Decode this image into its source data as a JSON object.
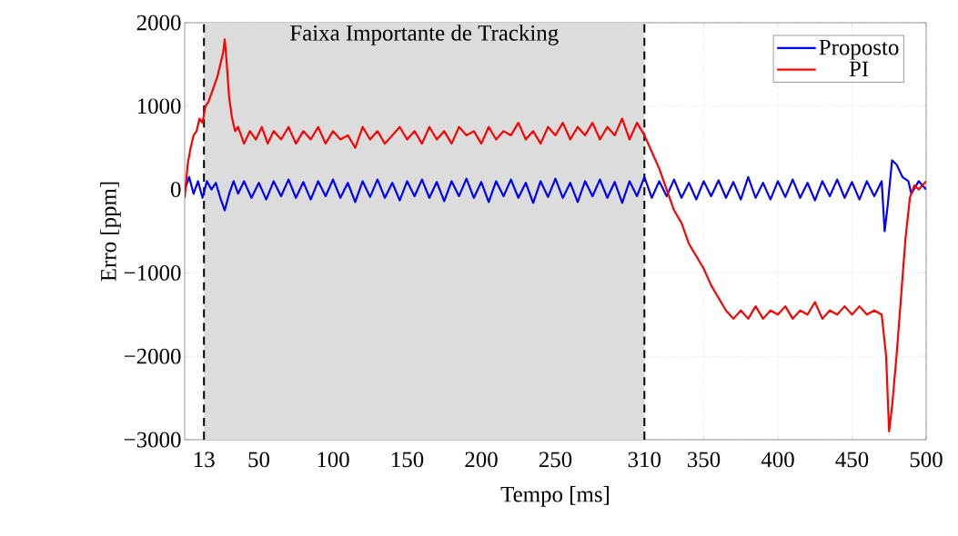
{
  "chart_data": {
    "type": "line",
    "xlabel": "Tempo [ms]",
    "ylabel": "Erro [ppm]",
    "xlim": [
      0,
      500
    ],
    "ylim": [
      -3000,
      2000
    ],
    "xticks": [
      13,
      50,
      100,
      150,
      200,
      250,
      310,
      350,
      400,
      450,
      500
    ],
    "yticks": [
      {
        "value": -3000,
        "label": "−3000"
      },
      {
        "value": -2000,
        "label": "−2000"
      },
      {
        "value": -1000,
        "label": "−1000"
      },
      0,
      1000,
      2000
    ],
    "grid": true,
    "legend": "top right",
    "line_style": "solid",
    "marker": "none",
    "bands": [
      {
        "axis": "x",
        "from": 13,
        "to": 310,
        "label": "Faixa Importante de Tracking",
        "color": "#dcdcdc"
      }
    ],
    "series": [
      {
        "name": "Proposto",
        "color": "#0000ff",
        "x": [
          0,
          3,
          6,
          9,
          12,
          15,
          18,
          21,
          24,
          27,
          30,
          33,
          36,
          40,
          45,
          50,
          55,
          60,
          65,
          70,
          75,
          80,
          85,
          90,
          95,
          100,
          105,
          110,
          115,
          120,
          125,
          130,
          135,
          140,
          145,
          150,
          155,
          160,
          165,
          170,
          175,
          180,
          185,
          190,
          195,
          200,
          205,
          210,
          215,
          220,
          225,
          230,
          235,
          240,
          245,
          250,
          255,
          260,
          265,
          270,
          275,
          280,
          285,
          290,
          295,
          300,
          305,
          310,
          315,
          320,
          325,
          330,
          335,
          340,
          345,
          350,
          355,
          360,
          365,
          370,
          375,
          380,
          385,
          390,
          395,
          400,
          405,
          410,
          415,
          420,
          425,
          430,
          435,
          440,
          445,
          450,
          455,
          460,
          465,
          470,
          472,
          474,
          477,
          480,
          484,
          488,
          490,
          495,
          500
        ],
        "values": [
          0,
          150,
          -50,
          100,
          -100,
          100,
          0,
          80,
          -100,
          -250,
          -50,
          100,
          -50,
          100,
          -100,
          80,
          -120,
          100,
          -80,
          120,
          -100,
          90,
          -120,
          100,
          -80,
          120,
          -100,
          80,
          -150,
          100,
          -90,
          120,
          -100,
          80,
          -130,
          100,
          -80,
          120,
          -100,
          90,
          -140,
          100,
          -80,
          130,
          -100,
          90,
          -150,
          100,
          -80,
          120,
          -100,
          80,
          -160,
          100,
          -90,
          130,
          -100,
          80,
          -150,
          100,
          -80,
          120,
          -100,
          90,
          -160,
          100,
          -80,
          150,
          -100,
          100,
          -80,
          120,
          -100,
          80,
          -120,
          100,
          -80,
          110,
          -100,
          90,
          -120,
          150,
          -100,
          80,
          -120,
          100,
          -90,
          120,
          -100,
          80,
          -130,
          100,
          -80,
          120,
          -100,
          90,
          -120,
          100,
          -80,
          100,
          -500,
          -200,
          350,
          300,
          150,
          100,
          -50,
          100,
          0
        ]
      },
      {
        "name": "PI",
        "color": "#ff0000",
        "x": [
          0,
          2,
          4,
          6,
          8,
          10,
          12,
          14,
          16,
          18,
          20,
          22,
          24,
          26,
          27,
          28,
          30,
          32,
          34,
          36,
          40,
          44,
          48,
          52,
          56,
          60,
          65,
          70,
          75,
          80,
          85,
          90,
          95,
          100,
          105,
          110,
          115,
          120,
          125,
          130,
          135,
          140,
          145,
          150,
          155,
          160,
          165,
          170,
          175,
          180,
          185,
          190,
          195,
          200,
          205,
          210,
          215,
          220,
          225,
          230,
          235,
          240,
          245,
          250,
          255,
          260,
          265,
          270,
          275,
          280,
          285,
          290,
          295,
          300,
          305,
          310,
          315,
          320,
          325,
          330,
          335,
          340,
          345,
          350,
          355,
          360,
          365,
          370,
          375,
          380,
          385,
          390,
          395,
          400,
          405,
          410,
          415,
          420,
          425,
          430,
          435,
          440,
          445,
          450,
          455,
          460,
          465,
          470,
          473,
          475,
          477,
          480,
          483,
          486,
          489,
          492,
          495,
          500
        ],
        "values": [
          -100,
          300,
          500,
          650,
          700,
          850,
          800,
          1000,
          1050,
          1150,
          1250,
          1350,
          1500,
          1650,
          1800,
          1600,
          1100,
          850,
          700,
          750,
          550,
          700,
          600,
          750,
          550,
          700,
          600,
          750,
          550,
          700,
          600,
          750,
          550,
          700,
          600,
          650,
          500,
          750,
          600,
          700,
          550,
          650,
          750,
          600,
          700,
          550,
          750,
          600,
          700,
          550,
          750,
          650,
          700,
          550,
          750,
          600,
          700,
          650,
          800,
          600,
          700,
          550,
          750,
          650,
          800,
          600,
          750,
          650,
          800,
          600,
          750,
          650,
          850,
          600,
          800,
          650,
          450,
          250,
          0,
          -250,
          -400,
          -650,
          -800,
          -950,
          -1150,
          -1300,
          -1450,
          -1550,
          -1450,
          -1550,
          -1400,
          -1550,
          -1450,
          -1500,
          -1400,
          -1550,
          -1450,
          -1500,
          -1350,
          -1550,
          -1450,
          -1500,
          -1400,
          -1500,
          -1400,
          -1500,
          -1450,
          -1500,
          -2000,
          -2900,
          -2600,
          -2000,
          -1300,
          -600,
          -100,
          50,
          0,
          100
        ]
      }
    ]
  }
}
